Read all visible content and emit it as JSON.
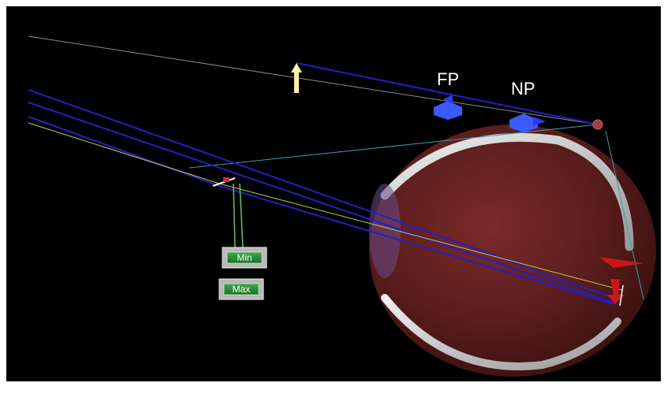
{
  "labels": {
    "far_point": "FP",
    "near_point": "NP"
  },
  "controls": {
    "min_label": "Min",
    "max_label": "Max"
  },
  "icons": {
    "object_arrow": "up-arrow-icon",
    "far_point_marker": "blue-arrow-icon",
    "near_point_marker": "blue-arrow-icon",
    "image_arrow": "down-arrow-icon"
  },
  "colors": {
    "background": "#000000",
    "ray_blue": "#2020c8",
    "ray_green": "#6fbf6f",
    "ray_yellow": "#c8c850",
    "ray_teal": "#3aa0a8",
    "eyeball": "#6b2424",
    "sclera": "#c8c8c8",
    "object_arrow": "#fff2a8",
    "marker_blue": "#2a3cf0",
    "image_red": "#c81818",
    "button_green": "#2e8b3a"
  }
}
